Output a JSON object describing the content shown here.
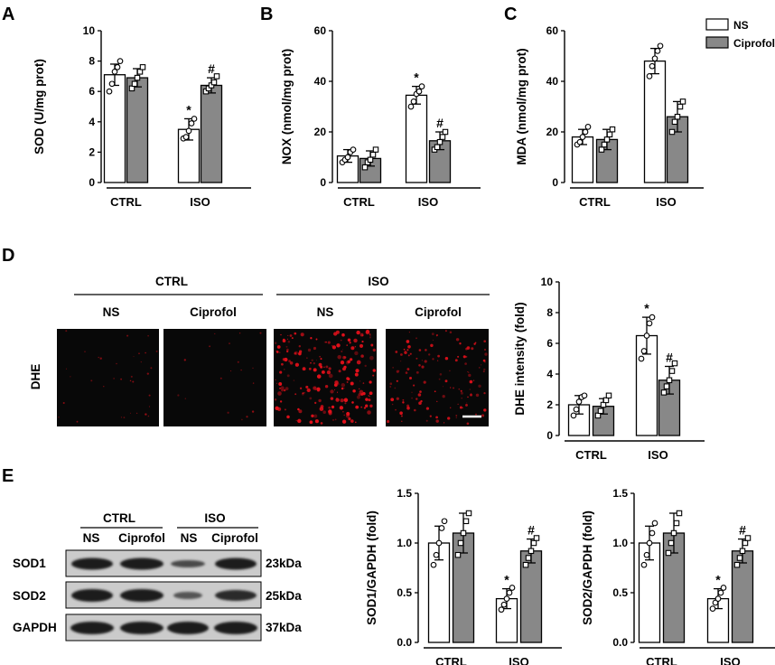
{
  "panels": {
    "A": "A",
    "B": "B",
    "C": "C",
    "D": "D",
    "E": "E"
  },
  "legend": {
    "ns": "NS",
    "ciprofol": "Ciprofol"
  },
  "colors": {
    "ns": "#ffffff",
    "ciprofol": "#888888",
    "stroke": "#000000",
    "dhe_signal": "#e0101a",
    "dhe_bg": "#080808"
  },
  "dhe_panel": {
    "group_ctrl": "CTRL",
    "group_iso": "ISO",
    "col_labels": [
      "NS",
      "Ciprofol",
      "NS",
      "Ciprofol"
    ],
    "row_label": "DHE",
    "signal_level": [
      0.12,
      0.05,
      0.9,
      0.55
    ]
  },
  "blot_panel": {
    "group_ctrl": "CTRL",
    "group_iso": "ISO",
    "lane_labels": [
      "NS",
      "Ciprofol",
      "NS",
      "Ciprofol"
    ],
    "rows": [
      {
        "name": "SOD1",
        "size": "23kDa"
      },
      {
        "name": "SOD2",
        "size": "25kDa"
      },
      {
        "name": "GAPDH",
        "size": "37kDa"
      }
    ]
  },
  "chart_data": [
    {
      "id": "A",
      "type": "bar",
      "categories": [
        "CTRL",
        "ISO"
      ],
      "ylabel": "SOD (U/mg prot)",
      "ylim": [
        0,
        10
      ],
      "yticks": [
        0,
        2,
        4,
        6,
        8,
        10
      ],
      "series": [
        {
          "name": "NS",
          "values": [
            7.1,
            3.5
          ],
          "errors": [
            0.7,
            0.7
          ],
          "points": [
            [
              6.0,
              6.5,
              7.3,
              7.6,
              8.0
            ],
            [
              2.9,
              3.0,
              3.4,
              3.9,
              4.2
            ]
          ],
          "sig": [
            "",
            "*"
          ]
        },
        {
          "name": "Ciprofol",
          "values": [
            6.9,
            6.4
          ],
          "errors": [
            0.6,
            0.5
          ],
          "points": [
            [
              6.2,
              6.5,
              6.9,
              7.3,
              7.6
            ],
            [
              6.0,
              6.2,
              6.4,
              6.6,
              7.0
            ]
          ],
          "sig": [
            "",
            "#"
          ]
        }
      ]
    },
    {
      "id": "B",
      "type": "bar",
      "categories": [
        "CTRL",
        "ISO"
      ],
      "ylabel": "NOX (nmol/mg prot)",
      "ylim": [
        0,
        60
      ],
      "yticks": [
        0,
        20,
        40,
        60
      ],
      "series": [
        {
          "name": "NS",
          "values": [
            10.5,
            34.5
          ],
          "errors": [
            2.5,
            3.5
          ],
          "points": [
            [
              8,
              9,
              10,
              12,
              13
            ],
            [
              30,
              32,
              35,
              36,
              38
            ]
          ],
          "sig": [
            "",
            "*"
          ]
        },
        {
          "name": "Ciprofol",
          "values": [
            9.5,
            16.5
          ],
          "errors": [
            3,
            3.5
          ],
          "points": [
            [
              6,
              8,
              9,
              11,
              13
            ],
            [
              13,
              14,
              16,
              18,
              20
            ]
          ],
          "sig": [
            "",
            "#"
          ]
        }
      ]
    },
    {
      "id": "C",
      "type": "bar",
      "categories": [
        "CTRL",
        "ISO"
      ],
      "ylabel": "MDA (nmol/mg prot)",
      "ylim": [
        0,
        60
      ],
      "yticks": [
        0,
        20,
        40,
        60
      ],
      "series": [
        {
          "name": "NS",
          "values": [
            18,
            48
          ],
          "errors": [
            3,
            5
          ],
          "points": [
            [
              15,
              16,
              18,
              20,
              22
            ],
            [
              42,
              46,
              49,
              52,
              54
            ]
          ],
          "sig": [
            "",
            ""
          ]
        },
        {
          "name": "Ciprofol",
          "values": [
            17,
            26
          ],
          "errors": [
            4,
            6
          ],
          "points": [
            [
              13,
              15,
              17,
              19,
              21
            ],
            [
              20,
              24,
              26,
              30,
              32
            ]
          ],
          "sig": [
            "",
            ""
          ]
        }
      ]
    },
    {
      "id": "D",
      "type": "bar",
      "categories": [
        "CTRL",
        "ISO"
      ],
      "ylabel": "DHE  intensity (fold)",
      "ylim": [
        0,
        10
      ],
      "yticks": [
        0,
        2,
        4,
        6,
        8,
        10
      ],
      "series": [
        {
          "name": "NS",
          "values": [
            2.0,
            6.5
          ],
          "errors": [
            0.6,
            1.2
          ],
          "points": [
            [
              1.3,
              1.7,
              2.2,
              2.5,
              2.6
            ],
            [
              5.0,
              5.5,
              6.5,
              7.3,
              7.7
            ]
          ],
          "sig": [
            "",
            "*"
          ]
        },
        {
          "name": "Ciprofol",
          "values": [
            1.9,
            3.6
          ],
          "errors": [
            0.5,
            0.9
          ],
          "points": [
            [
              1.3,
              1.6,
              2.0,
              2.3,
              2.6
            ],
            [
              2.8,
              3.2,
              3.6,
              4.2,
              4.7
            ]
          ],
          "sig": [
            "",
            "#"
          ]
        }
      ]
    },
    {
      "id": "E1",
      "type": "bar",
      "categories": [
        "CTRL",
        "ISO"
      ],
      "ylabel": "SOD1/GAPDH (fold)",
      "ylim": [
        0,
        1.5
      ],
      "yticks": [
        0.0,
        0.5,
        1.0,
        1.5
      ],
      "series": [
        {
          "name": "NS",
          "values": [
            1.0,
            0.44
          ],
          "errors": [
            0.17,
            0.1
          ],
          "points": [
            [
              0.78,
              0.88,
              1.0,
              1.15,
              1.22
            ],
            [
              0.33,
              0.38,
              0.44,
              0.5,
              0.55
            ]
          ],
          "sig": [
            "",
            "*"
          ]
        },
        {
          "name": "Ciprofol",
          "values": [
            1.1,
            0.92
          ],
          "errors": [
            0.2,
            0.12
          ],
          "points": [
            [
              0.88,
              1.0,
              1.1,
              1.22,
              1.3
            ],
            [
              0.78,
              0.85,
              0.92,
              1.0,
              1.05
            ]
          ],
          "sig": [
            "",
            "#"
          ]
        }
      ]
    },
    {
      "id": "E2",
      "type": "bar",
      "categories": [
        "CTRL",
        "ISO"
      ],
      "ylabel": "SOD2/GAPDH (fold)",
      "ylim": [
        0,
        1.5
      ],
      "yticks": [
        0.0,
        0.5,
        1.0,
        1.5
      ],
      "series": [
        {
          "name": "NS",
          "values": [
            1.0,
            0.44
          ],
          "errors": [
            0.17,
            0.1
          ],
          "points": [
            [
              0.78,
              0.88,
              1.0,
              1.1,
              1.2
            ],
            [
              0.34,
              0.4,
              0.44,
              0.5,
              0.55
            ]
          ],
          "sig": [
            "",
            "*"
          ]
        },
        {
          "name": "Ciprofol",
          "values": [
            1.1,
            0.92
          ],
          "errors": [
            0.2,
            0.12
          ],
          "points": [
            [
              0.9,
              1.0,
              1.1,
              1.2,
              1.3
            ],
            [
              0.78,
              0.85,
              0.92,
              1.0,
              1.05
            ]
          ],
          "sig": [
            "",
            "#"
          ]
        }
      ]
    }
  ]
}
